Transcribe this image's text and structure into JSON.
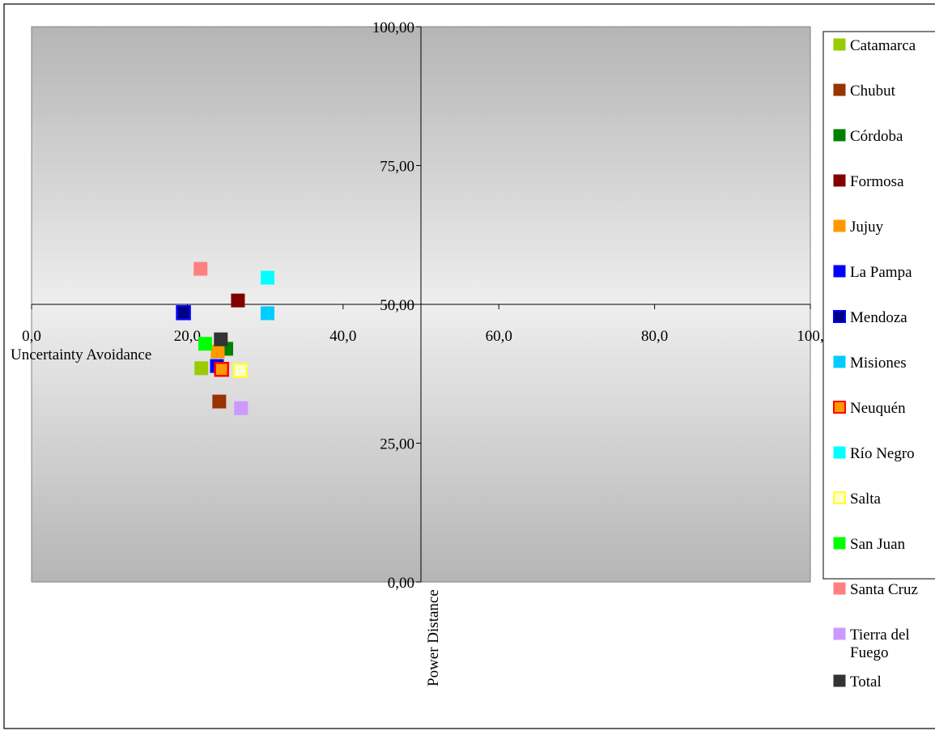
{
  "chart_data": {
    "type": "scatter",
    "title": "",
    "xlabel": "Uncertainty Avoidance",
    "ylabel": "Power Distance",
    "xlim": [
      0,
      100
    ],
    "ylim": [
      0,
      100
    ],
    "x_ticks": [
      "0,0",
      "20,0",
      "40,0",
      "60,0",
      "80,0",
      "100,"
    ],
    "x_tick_values": [
      0,
      20,
      40,
      60,
      80,
      100
    ],
    "y_ticks": [
      "0,00",
      "25,00",
      "50,00",
      "75,00",
      "100,00"
    ],
    "y_tick_values": [
      0,
      25,
      50,
      75,
      100
    ],
    "grid": false,
    "legend_position": "right",
    "background": "gray-white-gray vertical gradient",
    "series": [
      {
        "name": "Catamarca",
        "color": "#99CC00",
        "marker": "square",
        "x": 21.8,
        "y": 38.5
      },
      {
        "name": "Chubut",
        "color": "#993300",
        "marker": "square",
        "x": 24.1,
        "y": 32.5
      },
      {
        "name": "Córdoba",
        "color": "#008000",
        "marker": "square",
        "x": 25.0,
        "y": 42.0
      },
      {
        "name": "Formosa",
        "color": "#800000",
        "marker": "square",
        "x": 26.5,
        "y": 50.7
      },
      {
        "name": "Jujuy",
        "color": "#FF9900",
        "marker": "square",
        "x": 23.9,
        "y": 41.5
      },
      {
        "name": "La Pampa",
        "color": "#0000FF",
        "marker": "square",
        "x": 23.8,
        "y": 38.9
      },
      {
        "name": "Mendoza",
        "color": "#000080",
        "marker": "square",
        "x": 19.5,
        "y": 48.5
      },
      {
        "name": "Misiones",
        "color": "#00CCFF",
        "marker": "square",
        "x": 30.3,
        "y": 48.4
      },
      {
        "name": "Neuquén",
        "color": "#FF0000",
        "marker": "square",
        "x": 24.4,
        "y": 38.3
      },
      {
        "name": "Río Negro",
        "color": "#00FFFF",
        "marker": "square",
        "x": 30.3,
        "y": 54.8
      },
      {
        "name": "Salta",
        "color": "#FFFF99",
        "marker": "square",
        "x": 26.8,
        "y": 38.1
      },
      {
        "name": "San Juan",
        "color": "#00FF00",
        "marker": "square",
        "x": 22.3,
        "y": 42.9
      },
      {
        "name": "Santa Cruz",
        "color": "#FF8080",
        "marker": "square",
        "x": 21.7,
        "y": 56.4
      },
      {
        "name": "Tierra del Fuego",
        "color": "#CC99FF",
        "marker": "square",
        "x": 26.9,
        "y": 31.3
      },
      {
        "name": "Total",
        "color": "#333333",
        "marker": "square",
        "x": 24.3,
        "y": 43.7
      }
    ]
  }
}
